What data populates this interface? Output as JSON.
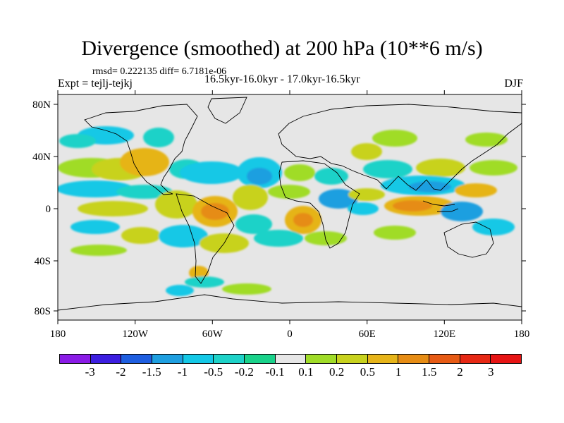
{
  "title": "Divergence (smoothed) at 200 hPa (10**6 m/s)",
  "stats": "rmsd= 0.222135 diff= 6.7181e-06",
  "expt": "Expt = tejlj-tejkj",
  "period": "16.5kyr-16.0kyr - 17.0kyr-16.5kyr",
  "season": "DJF",
  "lat_labels": [
    "80N",
    "40N",
    "0",
    "40S",
    "80S"
  ],
  "lon_labels": [
    "180",
    "120W",
    "60W",
    "0",
    "60E",
    "120E",
    "180"
  ],
  "colorbar": {
    "labels": [
      "-3",
      "-2",
      "-1.5",
      "-1",
      "-0.5",
      "-0.2",
      "-0.1",
      "0.1",
      "0.2",
      "0.5",
      "1",
      "1.5",
      "2",
      "3"
    ],
    "colors": [
      "#8a1be6",
      "#3c1ee0",
      "#1e5ee0",
      "#1e9fe0",
      "#14c8e6",
      "#1ed2c8",
      "#19d28a",
      "#e6e6e6",
      "#a0dc28",
      "#c8d21e",
      "#e6b419",
      "#e68c14",
      "#e65a14",
      "#e62814",
      "#e61414"
    ]
  },
  "colors": {
    "land_sea_background": "#e6e6e6",
    "coastline": "#000000"
  }
}
